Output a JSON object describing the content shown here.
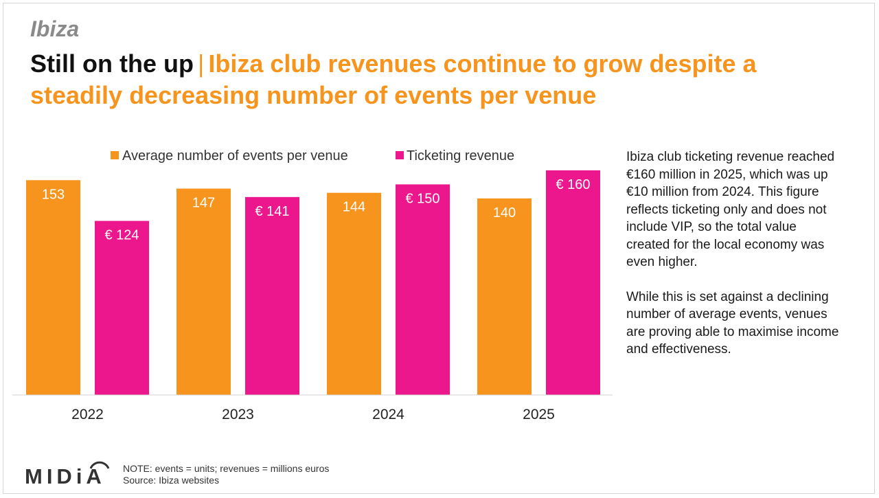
{
  "header": {
    "kicker": "Ibiza",
    "headline_main": "Still on the up",
    "separator": "|",
    "headline_sub": "Ibiza club revenues continue to grow despite a steadily decreasing number of events per venue"
  },
  "colors": {
    "events": "#f7941d",
    "revenue": "#ec178c",
    "title_accent": "#f7941d"
  },
  "chart_data": {
    "type": "bar",
    "title": "",
    "categories": [
      "2022",
      "2023",
      "2024",
      "2025"
    ],
    "series": [
      {
        "name": "Average number of events per venue",
        "values": [
          153,
          147,
          144,
          140
        ],
        "labels": [
          "153",
          "147",
          "144",
          "140"
        ],
        "color": "#f7941d"
      },
      {
        "name": "Ticketing revenue",
        "values": [
          124,
          141,
          150,
          160
        ],
        "labels": [
          "€ 124",
          "€ 141",
          "€ 150",
          "€ 160"
        ],
        "color": "#ec178c"
      }
    ],
    "xlabel": "",
    "ylabel": "",
    "ylim": [
      0,
      160
    ],
    "grid": false,
    "legend": "top"
  },
  "side_text": {
    "p1": "Ibiza club ticketing revenue reached €160 million in 2025, which was up €10 million from 2024. This figure reflects ticketing only and does not include VIP, so the total value created for the local economy was even higher.",
    "p2": "While this is set against a declining number of average events, venues are proving able to maximise income and effectiveness."
  },
  "footer": {
    "logo_text": "MIDiA",
    "note": "NOTE: events = units; revenues = millions euros",
    "source": "Source: Ibiza websites"
  }
}
